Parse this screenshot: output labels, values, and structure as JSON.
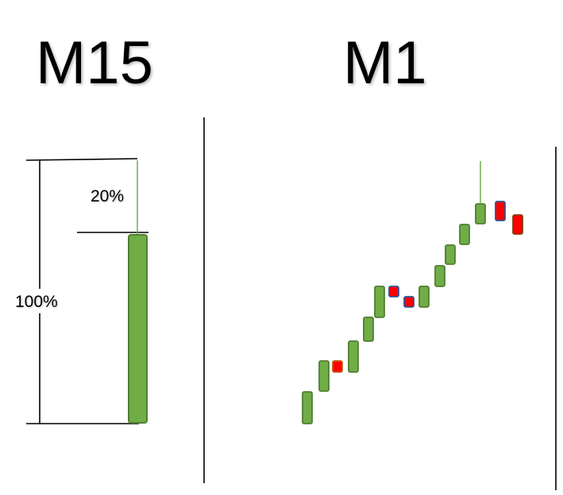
{
  "left_panel": {
    "title": "M15",
    "wick_label": "20%",
    "range_label": "100%",
    "candle_color": "#70ad47",
    "candle_border": "#507e32"
  },
  "right_panel": {
    "title": "M1",
    "candles": [
      "bull",
      "bull",
      "bear",
      "bull",
      "bull",
      "bull",
      "bear",
      "bear",
      "bull",
      "bull",
      "bull",
      "bull",
      "bull",
      "bear",
      "bear"
    ],
    "bull_color": "#70ad47",
    "bear_color": "#ff0000"
  }
}
